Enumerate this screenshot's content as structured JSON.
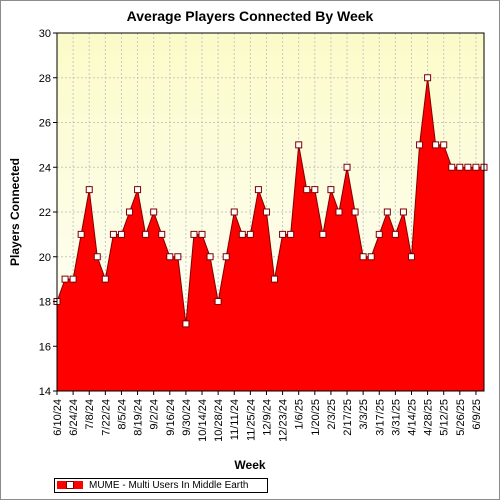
{
  "chart_data": {
    "type": "area",
    "title": "Average Players Connected By Week",
    "xlabel": "Week",
    "ylabel": "Players Connected",
    "ylim": [
      14,
      30
    ],
    "yticks": [
      14,
      16,
      18,
      20,
      22,
      24,
      26,
      28,
      30
    ],
    "grid": true,
    "legend_position": "bottom-left",
    "xtick_labels": [
      "6/10/24",
      "6/24/24",
      "7/8/24",
      "7/22/24",
      "8/5/24",
      "8/19/24",
      "9/2/24",
      "9/16/24",
      "9/30/24",
      "10/14/24",
      "10/28/24",
      "11/11/24",
      "11/25/24",
      "12/9/24",
      "12/23/24",
      "1/6/25",
      "1/20/25",
      "2/3/25",
      "2/17/25",
      "3/3/25",
      "3/17/25",
      "3/31/25",
      "4/14/25",
      "4/28/25",
      "5/12/25",
      "5/26/25",
      "6/9/25"
    ],
    "x": [
      "6/10/24",
      "6/17/24",
      "6/24/24",
      "7/1/24",
      "7/8/24",
      "7/15/24",
      "7/22/24",
      "7/29/24",
      "8/5/24",
      "8/12/24",
      "8/19/24",
      "8/26/24",
      "9/2/24",
      "9/9/24",
      "9/16/24",
      "9/23/24",
      "9/30/24",
      "10/7/24",
      "10/14/24",
      "10/21/24",
      "10/28/24",
      "11/4/24",
      "11/11/24",
      "11/18/24",
      "11/25/24",
      "12/2/24",
      "12/9/24",
      "12/16/24",
      "12/23/24",
      "12/30/24",
      "1/6/25",
      "1/13/25",
      "1/20/25",
      "1/27/25",
      "2/3/25",
      "2/10/25",
      "2/17/25",
      "2/24/25",
      "3/3/25",
      "3/10/25",
      "3/17/25",
      "3/24/25",
      "3/31/25",
      "4/7/25",
      "4/14/25",
      "4/21/25",
      "4/28/25",
      "5/5/25",
      "5/12/25",
      "5/19/25",
      "5/26/25",
      "6/2/25",
      "6/9/25",
      "6/16/25"
    ],
    "series": [
      {
        "name": "MUME - Multi Users In Middle Earth",
        "color": "#ff0000",
        "values": [
          18,
          19,
          19,
          21,
          23,
          20,
          19,
          21,
          21,
          22,
          23,
          21,
          22,
          21,
          20,
          20,
          17,
          21,
          21,
          20,
          18,
          20,
          22,
          21,
          21,
          23,
          22,
          19,
          21,
          21,
          25,
          23,
          23,
          21,
          23,
          22,
          24,
          22,
          20,
          20,
          21,
          22,
          21,
          22,
          20,
          25,
          28,
          25,
          25,
          24,
          24,
          24,
          24,
          24
        ]
      }
    ]
  },
  "colors": {
    "plot_background_top": "#fbfbc8",
    "plot_background_bottom": "#ffffff",
    "area_fill": "#ff0000",
    "area_edge": "#800000",
    "marker_fill": "#ffffff"
  }
}
